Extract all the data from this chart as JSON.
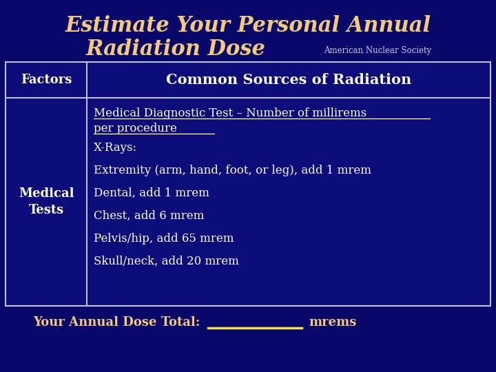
{
  "title_line1": "Estimate Your Personal Annual",
  "title_line2": "Radiation Dose",
  "subtitle": "American Nuclear Society",
  "bg_color": "#08086a",
  "title_color": "#f5c87a",
  "subtitle_color": "#c8c8e8",
  "table_bg": "#0c0c7a",
  "table_border_color": "#c0c0d8",
  "header_left": "Factors",
  "header_right": "Common Sources of Radiation",
  "header_text_color": "#ffffff",
  "cell_left_line1": "Medical",
  "cell_left_line2": "Tests",
  "cell_right_underline_line1": "Medical Diagnostic Test – Number of millirems",
  "cell_right_underline_line2": "per procedure",
  "cell_right_other_lines": [
    "X-Rays:",
    "Extremity (arm, hand, foot, or leg), add 1 mrem",
    "Dental, add 1 mrem",
    "Chest, add 6 mrem",
    "Pelvis/hip, add 65 mrem",
    "Skull/neck, add 20 mrem"
  ],
  "cell_text_color": "#ffffff",
  "footer_text": "Your Annual Dose Total:",
  "footer_mrems": "mrems",
  "footer_color": "#f5c87a",
  "footer_line_color": "#f5e040",
  "figsize": [
    7.2,
    5.4
  ],
  "dpi": 100
}
